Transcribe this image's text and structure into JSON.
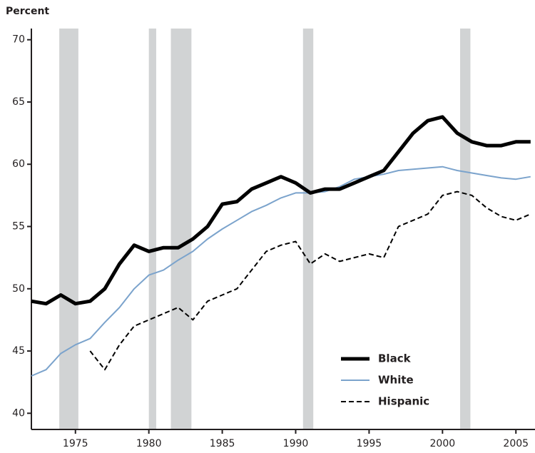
{
  "chart_data": {
    "type": "line",
    "ylabel": "Percent",
    "x": [
      1972,
      1973,
      1974,
      1975,
      1976,
      1977,
      1978,
      1979,
      1980,
      1981,
      1982,
      1983,
      1984,
      1985,
      1986,
      1987,
      1988,
      1989,
      1990,
      1991,
      1992,
      1993,
      1994,
      1995,
      1996,
      1997,
      1998,
      1999,
      2000,
      2001,
      2002,
      2003,
      2004,
      2005,
      2006
    ],
    "series": [
      {
        "name": "Black",
        "color": "#000000",
        "dash": "solid",
        "values": [
          49,
          48.8,
          49.5,
          48.8,
          49,
          50,
          52,
          53.5,
          53,
          53.3,
          53.3,
          54,
          55,
          56.8,
          57,
          58,
          58.5,
          59,
          58.5,
          57.7,
          58,
          58,
          58.5,
          59,
          59.5,
          61,
          62.5,
          63.5,
          63.8,
          62.5,
          61.8,
          61.5,
          61.5,
          61.8,
          61.8
        ]
      },
      {
        "name": "White",
        "color": "#7ba3cc",
        "dash": "solid",
        "values": [
          43,
          43.5,
          44.8,
          45.5,
          46,
          47.3,
          48.5,
          50,
          51.1,
          51.5,
          52.3,
          53,
          54,
          54.8,
          55.5,
          56.2,
          56.7,
          57.3,
          57.7,
          57.7,
          57.8,
          58.2,
          58.8,
          59,
          59.2,
          59.5,
          59.6,
          59.7,
          59.8,
          59.5,
          59.3,
          59.1,
          58.9,
          58.8,
          59
        ]
      },
      {
        "name": "Hispanic",
        "color": "#000000",
        "dash": "dashed",
        "values": [
          null,
          null,
          null,
          null,
          45,
          43.5,
          45.5,
          47,
          47.5,
          48,
          48.5,
          47.5,
          49,
          49.5,
          50,
          51.5,
          53,
          53.5,
          53.8,
          52,
          52.8,
          52.2,
          52.5,
          52.8,
          52.5,
          55,
          55.5,
          56,
          57.5,
          57.8,
          57.5,
          56.5,
          55.8,
          55.5,
          56
        ]
      }
    ],
    "recessions": [
      [
        1973.9,
        1975.2
      ],
      [
        1980.0,
        1980.5
      ],
      [
        1981.5,
        1982.9
      ],
      [
        1990.5,
        1991.2
      ],
      [
        2001.2,
        2001.9
      ]
    ],
    "recession_color": "#d1d3d4",
    "xlim": [
      1972,
      2006.3
    ],
    "ylim": [
      38.7,
      70.9
    ],
    "xticks": [
      1975,
      1980,
      1985,
      1990,
      1995,
      2000,
      2005
    ],
    "yticks": [
      40,
      45,
      50,
      55,
      60,
      65,
      70
    ]
  }
}
